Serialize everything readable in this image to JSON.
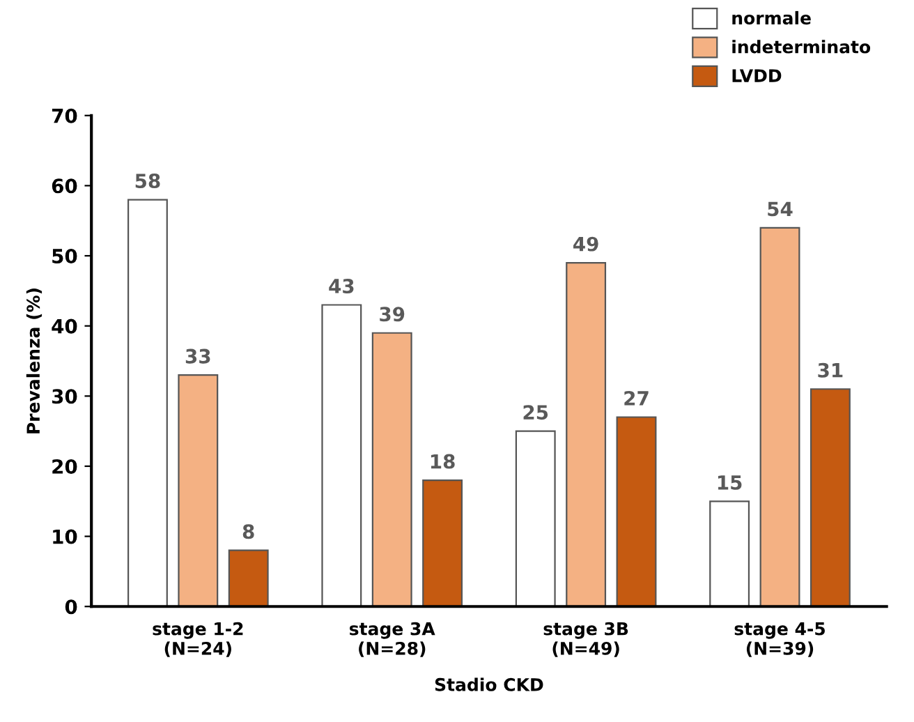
{
  "chart_data": {
    "type": "bar",
    "xlabel": "Stadio CKD",
    "ylabel": "Prevalenza (%)",
    "categories": [
      "stage 1-2\n(N=24)",
      "stage 3A\n(N=28)",
      "stage 3B\n(N=49)",
      "stage 4-5\n(N=39)"
    ],
    "series": [
      {
        "name": "normale",
        "color": "#ffffff",
        "values": [
          58,
          43,
          25,
          15
        ]
      },
      {
        "name": "indeterminato",
        "color": "#f4b183",
        "values": [
          33,
          39,
          49,
          54
        ]
      },
      {
        "name": "LVDD",
        "color": "#c55a11",
        "values": [
          8,
          18,
          27,
          31
        ]
      }
    ],
    "ylim": [
      0,
      70
    ],
    "yticks": [
      0,
      10,
      20,
      30,
      40,
      50,
      60,
      70
    ],
    "grid": false,
    "legend": "top right",
    "data_labels": true
  }
}
